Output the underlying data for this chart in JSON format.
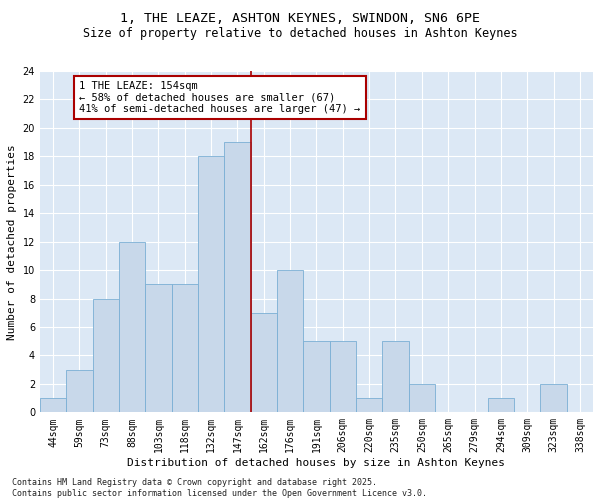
{
  "title1": "1, THE LEAZE, ASHTON KEYNES, SWINDON, SN6 6PE",
  "title2": "Size of property relative to detached houses in Ashton Keynes",
  "xlabel": "Distribution of detached houses by size in Ashton Keynes",
  "ylabel": "Number of detached properties",
  "categories": [
    "44sqm",
    "59sqm",
    "73sqm",
    "88sqm",
    "103sqm",
    "118sqm",
    "132sqm",
    "147sqm",
    "162sqm",
    "176sqm",
    "191sqm",
    "206sqm",
    "220sqm",
    "235sqm",
    "250sqm",
    "265sqm",
    "279sqm",
    "294sqm",
    "309sqm",
    "323sqm",
    "338sqm"
  ],
  "values": [
    1,
    3,
    8,
    12,
    9,
    9,
    18,
    19,
    7,
    10,
    5,
    5,
    1,
    5,
    2,
    0,
    0,
    1,
    0,
    2,
    0
  ],
  "bar_color": "#c8d8ea",
  "bar_edgecolor": "#7aafd4",
  "vline_color": "#aa0000",
  "annotation_text": "1 THE LEAZE: 154sqm\n← 58% of detached houses are smaller (67)\n41% of semi-detached houses are larger (47) →",
  "annotation_box_edgecolor": "#aa0000",
  "ylim": [
    0,
    24
  ],
  "yticks": [
    0,
    2,
    4,
    6,
    8,
    10,
    12,
    14,
    16,
    18,
    20,
    22,
    24
  ],
  "background_color": "#dce8f5",
  "footer_text": "Contains HM Land Registry data © Crown copyright and database right 2025.\nContains public sector information licensed under the Open Government Licence v3.0.",
  "title_fontsize": 9.5,
  "subtitle_fontsize": 8.5,
  "axis_fontsize": 8,
  "tick_fontsize": 7,
  "annotation_fontsize": 7.5,
  "footer_fontsize": 6
}
